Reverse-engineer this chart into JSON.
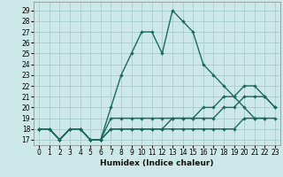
{
  "xlabel": "Humidex (Indice chaleur)",
  "bg_color": "#cde8e8",
  "grid_color": "#aacccc",
  "line_color": "#1a6b5a",
  "xlim": [
    -0.5,
    23.5
  ],
  "ylim": [
    16.5,
    29.8
  ],
  "yticks": [
    17,
    18,
    19,
    20,
    21,
    22,
    23,
    24,
    25,
    26,
    27,
    28,
    29
  ],
  "xticks": [
    0,
    1,
    2,
    3,
    4,
    5,
    6,
    7,
    8,
    9,
    10,
    11,
    12,
    13,
    14,
    15,
    16,
    17,
    18,
    19,
    20,
    21,
    22,
    23
  ],
  "series": [
    {
      "x": [
        0,
        1,
        2,
        3,
        4,
        5,
        6,
        7,
        8,
        9,
        10,
        11,
        12,
        13,
        14,
        15,
        16,
        17,
        18,
        19,
        20,
        21,
        22
      ],
      "y": [
        18,
        18,
        17,
        18,
        18,
        17,
        17,
        20,
        23,
        25,
        27,
        27,
        25,
        29,
        28,
        27,
        24,
        23,
        22,
        21,
        20,
        19,
        19
      ]
    },
    {
      "x": [
        0,
        1,
        2,
        3,
        4,
        5,
        6,
        7,
        8,
        9,
        10,
        11,
        12,
        13,
        14,
        15,
        16,
        17,
        18,
        19,
        20,
        21,
        22,
        23
      ],
      "y": [
        18,
        18,
        17,
        18,
        18,
        17,
        17,
        19,
        19,
        19,
        19,
        19,
        19,
        19,
        19,
        19,
        20,
        20,
        21,
        21,
        22,
        22,
        21,
        20
      ]
    },
    {
      "x": [
        0,
        1,
        2,
        3,
        4,
        5,
        6,
        7,
        8,
        9,
        10,
        11,
        12,
        13,
        14,
        15,
        16,
        17,
        18,
        19,
        20,
        21,
        22,
        23
      ],
      "y": [
        18,
        18,
        17,
        18,
        18,
        17,
        17,
        18,
        18,
        18,
        18,
        18,
        18,
        19,
        19,
        19,
        19,
        19,
        20,
        20,
        21,
        21,
        21,
        20
      ]
    },
    {
      "x": [
        0,
        1,
        2,
        3,
        4,
        5,
        6,
        7,
        8,
        9,
        10,
        11,
        12,
        13,
        14,
        15,
        16,
        17,
        18,
        19,
        20,
        21,
        22,
        23
      ],
      "y": [
        18,
        18,
        17,
        18,
        18,
        17,
        17,
        18,
        18,
        18,
        18,
        18,
        18,
        18,
        18,
        18,
        18,
        18,
        18,
        18,
        19,
        19,
        19,
        19
      ]
    }
  ],
  "linewidth": 1.0,
  "markersize": 2.2,
  "tick_fontsize": 5.5,
  "xlabel_fontsize": 6.5
}
